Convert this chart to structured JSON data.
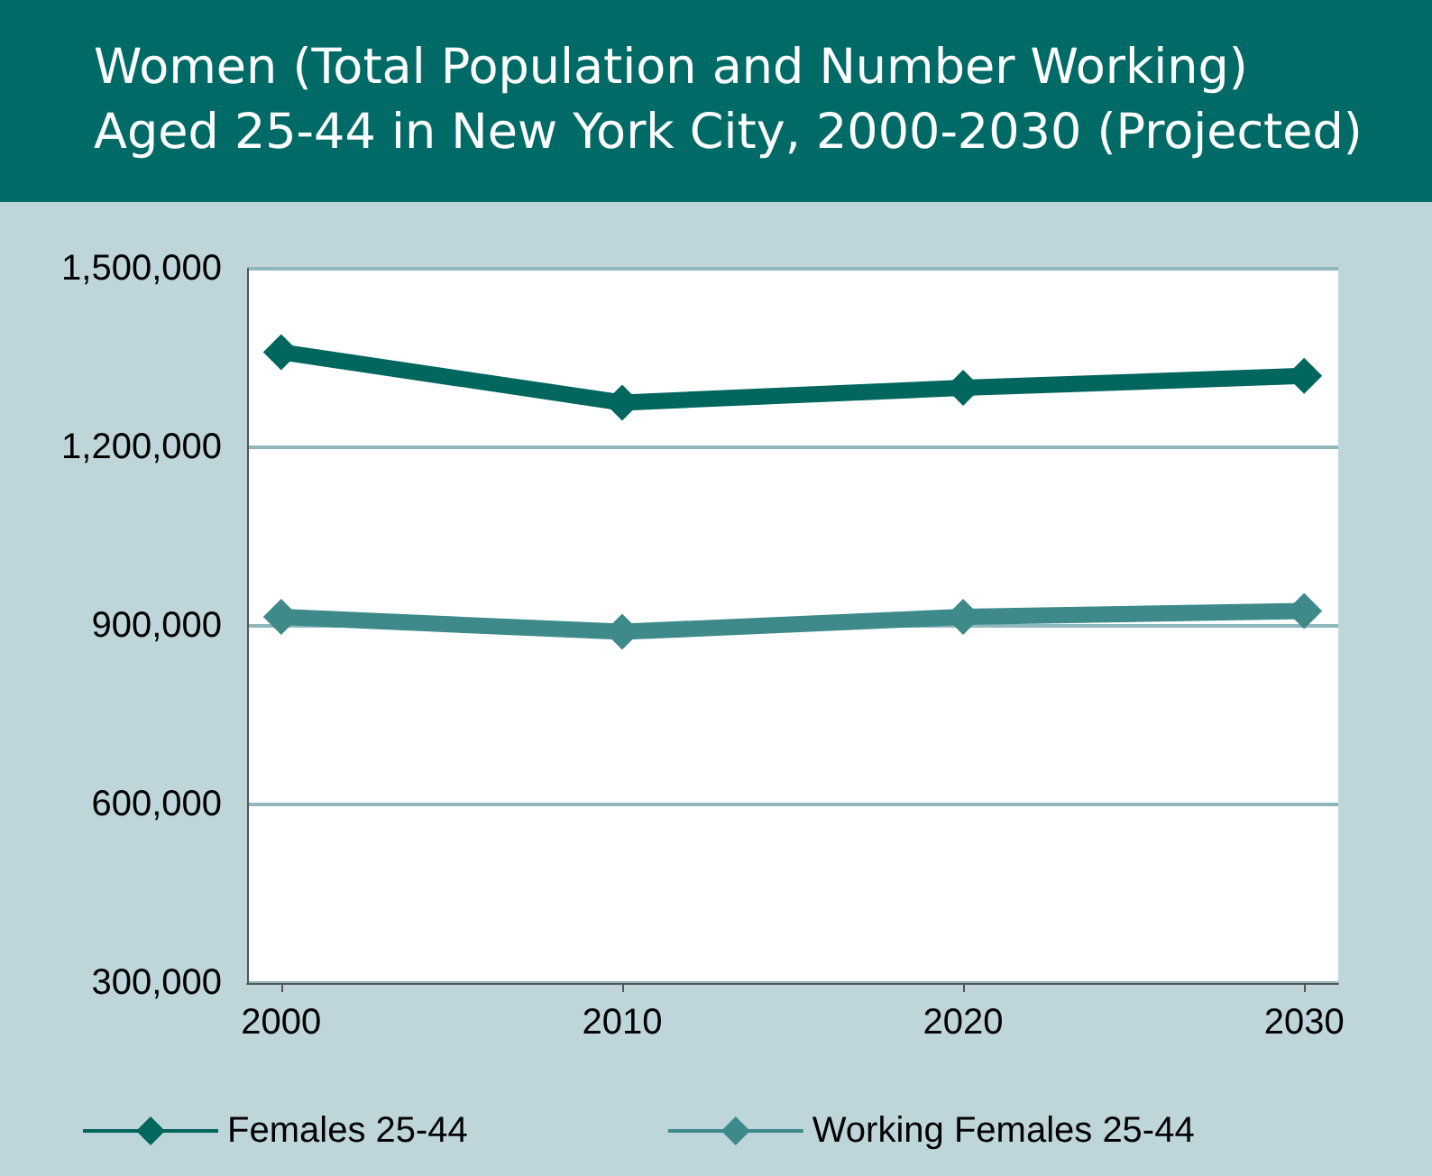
{
  "chart_data": {
    "type": "line",
    "title": "Women (Total Population and Number Working)\nAged 25-44 in New York City, 2000-2030 (Projected)",
    "x": [
      2000,
      2010,
      2020,
      2030
    ],
    "xlim": [
      1999,
      2031
    ],
    "xticks": [
      2000,
      2010,
      2020,
      2030
    ],
    "ylim": [
      300000,
      1500000
    ],
    "yticks": [
      {
        "value": 300000,
        "label": "300,000"
      },
      {
        "value": 600000,
        "label": "600,000"
      },
      {
        "value": 900000,
        "label": "900,000"
      },
      {
        "value": 1200000,
        "label": "1,200,000"
      },
      {
        "value": 1500000,
        "label": "1,500,000"
      }
    ],
    "series": [
      {
        "name": "Females 25-44",
        "color": "#00665e",
        "values": [
          1360000,
          1275000,
          1300000,
          1320000
        ]
      },
      {
        "name": "Working Females 25-44",
        "color": "#3e8a8a",
        "values": [
          915000,
          890000,
          915000,
          925000
        ]
      }
    ],
    "grid": "y",
    "legend": "bottom",
    "marker": "diamond",
    "line_style": "solid"
  }
}
